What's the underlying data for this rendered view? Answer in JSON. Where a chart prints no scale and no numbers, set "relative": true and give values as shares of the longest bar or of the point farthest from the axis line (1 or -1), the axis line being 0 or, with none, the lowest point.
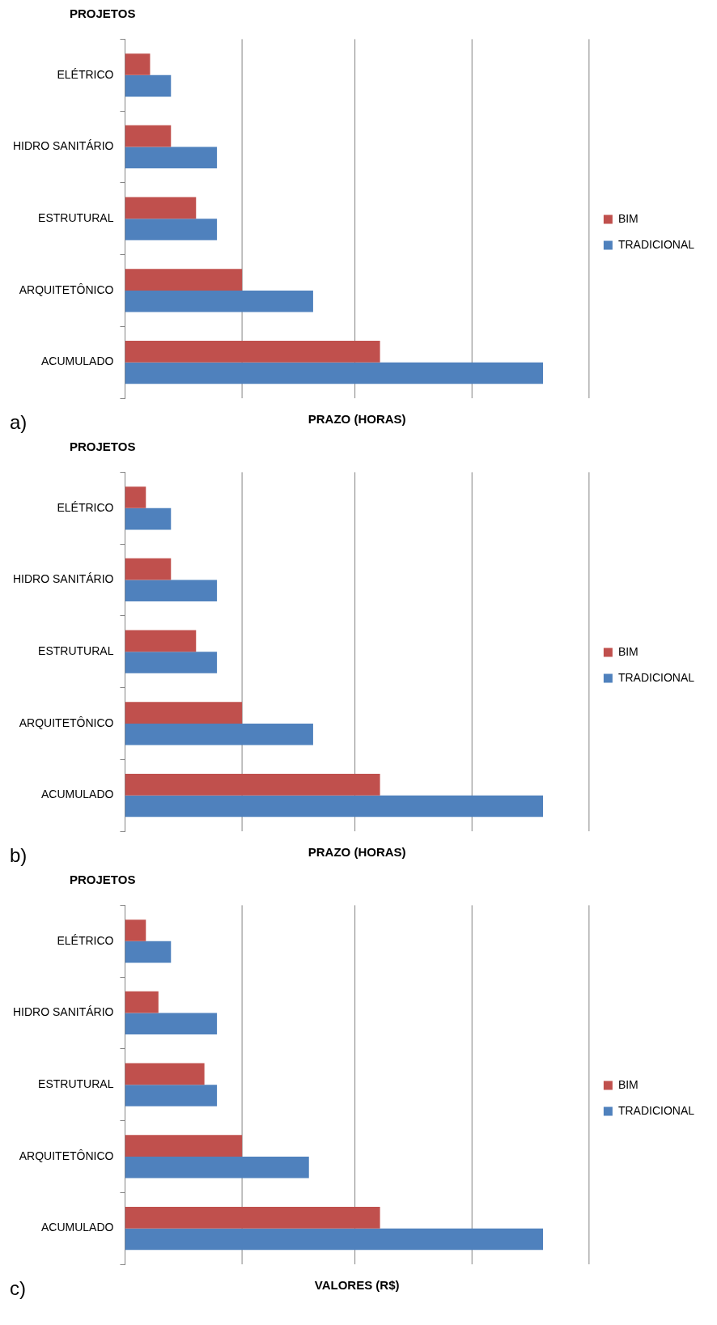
{
  "chart_data": [
    {
      "type": "bar",
      "orientation": "horizontal",
      "relative": true,
      "ylabel": "PROJETOS",
      "xlabel": "PRAZO (HORAS)",
      "categories": [
        "ELÉTRICO",
        "HIDRO SANITÁRIO",
        "ESTRUTURAL",
        "ARQUITETÔNICO",
        "ACUMULADO"
      ],
      "series": [
        {
          "name": "BIM",
          "color": "#c0504d",
          "values": [
            0.06,
            0.11,
            0.17,
            0.28,
            0.61
          ]
        },
        {
          "name": "TRADICIONAL",
          "color": "#4f81bd",
          "values": [
            0.11,
            0.22,
            0.22,
            0.45,
            1
          ]
        }
      ],
      "ref_lines": [
        {
          "axis": "x",
          "value": 0.28,
          "color": "#868686"
        },
        {
          "axis": "x",
          "value": 0.55,
          "color": "#868686"
        },
        {
          "axis": "x",
          "value": 0.83,
          "color": "#868686"
        },
        {
          "axis": "x",
          "value": 1.11,
          "color": "#868686"
        }
      ],
      "legend": "right",
      "annotations": [
        "a)"
      ]
    },
    {
      "type": "bar",
      "orientation": "horizontal",
      "relative": true,
      "ylabel": "PROJETOS",
      "xlabel": "PRAZO (HORAS)",
      "categories": [
        "ELÉTRICO",
        "HIDRO SANITÁRIO",
        "ESTRUTURAL",
        "ARQUITETÔNICO",
        "ACUMULADO"
      ],
      "series": [
        {
          "name": "BIM",
          "color": "#c0504d",
          "values": [
            0.05,
            0.11,
            0.17,
            0.28,
            0.61
          ]
        },
        {
          "name": "TRADICIONAL",
          "color": "#4f81bd",
          "values": [
            0.11,
            0.22,
            0.22,
            0.45,
            1
          ]
        }
      ],
      "ref_lines": [
        {
          "axis": "x",
          "value": 0.28,
          "color": "#868686"
        },
        {
          "axis": "x",
          "value": 0.55,
          "color": "#868686"
        },
        {
          "axis": "x",
          "value": 0.83,
          "color": "#868686"
        },
        {
          "axis": "x",
          "value": 1.11,
          "color": "#868686"
        }
      ],
      "legend": "right",
      "annotations": [
        "b)"
      ]
    },
    {
      "type": "bar",
      "orientation": "horizontal",
      "relative": true,
      "ylabel": "PROJETOS",
      "xlabel": "VALORES (R$)",
      "categories": [
        "ELÉTRICO",
        "HIDRO SANITÁRIO",
        "ESTRUTURAL",
        "ARQUITETÔNICO",
        "ACUMULADO"
      ],
      "series": [
        {
          "name": "BIM",
          "color": "#c0504d",
          "values": [
            0.05,
            0.08,
            0.19,
            0.28,
            0.61
          ]
        },
        {
          "name": "TRADICIONAL",
          "color": "#4f81bd",
          "values": [
            0.11,
            0.22,
            0.22,
            0.44,
            1
          ]
        }
      ],
      "ref_lines": [
        {
          "axis": "x",
          "value": 0.28,
          "color": "#868686"
        },
        {
          "axis": "x",
          "value": 0.55,
          "color": "#868686"
        },
        {
          "axis": "x",
          "value": 0.83,
          "color": "#868686"
        },
        {
          "axis": "x",
          "value": 1.11,
          "color": "#868686"
        }
      ],
      "legend": "right",
      "annotations": [
        "c)"
      ]
    }
  ]
}
